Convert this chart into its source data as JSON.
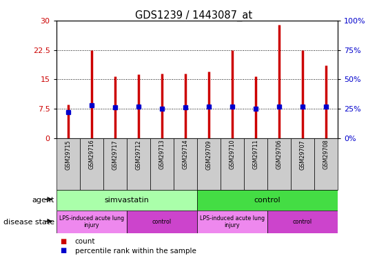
{
  "title": "GDS1239 / 1443087_at",
  "samples": [
    "GSM29715",
    "GSM29716",
    "GSM29717",
    "GSM29712",
    "GSM29713",
    "GSM29714",
    "GSM29709",
    "GSM29710",
    "GSM29711",
    "GSM29706",
    "GSM29707",
    "GSM29708"
  ],
  "counts": [
    8.5,
    22.5,
    15.8,
    16.2,
    16.5,
    16.5,
    17.0,
    22.5,
    15.8,
    29.0,
    22.5,
    18.5
  ],
  "percentiles": [
    22,
    28,
    26,
    27,
    25,
    26,
    27,
    27,
    25,
    27,
    27,
    27
  ],
  "bar_color": "#cc0000",
  "dot_color": "#0000cc",
  "ylim_left": [
    0,
    30
  ],
  "ylim_right": [
    0,
    100
  ],
  "yticks_left": [
    0,
    7.5,
    15,
    22.5,
    30
  ],
  "yticks_right": [
    0,
    25,
    50,
    75,
    100
  ],
  "ytick_labels_left": [
    "0",
    "7.5",
    "15",
    "22.5",
    "30"
  ],
  "ytick_labels_right": [
    "0%",
    "25%",
    "50%",
    "75%",
    "100%"
  ],
  "agent_groups": [
    {
      "label": "simvastatin",
      "start": 0,
      "end": 6,
      "color": "#aaffaa"
    },
    {
      "label": "control",
      "start": 6,
      "end": 12,
      "color": "#44dd44"
    }
  ],
  "disease_groups": [
    {
      "label": "LPS-induced acute lung\ninjury",
      "start": 0,
      "end": 3,
      "color": "#ee88ee"
    },
    {
      "label": "control",
      "start": 3,
      "end": 6,
      "color": "#cc44cc"
    },
    {
      "label": "LPS-induced acute lung\ninjury",
      "start": 6,
      "end": 9,
      "color": "#ee88ee"
    },
    {
      "label": "control",
      "start": 9,
      "end": 12,
      "color": "#cc44cc"
    }
  ],
  "legend_count_color": "#cc0000",
  "legend_pct_color": "#0000cc",
  "grid_color": "#000000",
  "axis_label_color_left": "#cc0000",
  "axis_label_color_right": "#0000cc",
  "agent_label": "agent",
  "disease_label": "disease state",
  "legend_count": "count",
  "legend_pct": "percentile rank within the sample",
  "bg_color": "#ffffff",
  "sample_bg_color": "#cccccc"
}
